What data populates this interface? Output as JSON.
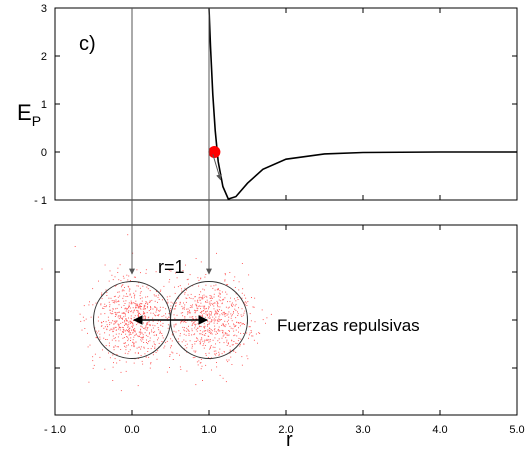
{
  "chart_data": [
    {
      "type": "line",
      "panel_label": "c)",
      "ylabel_main": "E",
      "ylabel_sub": "P",
      "xlim": [
        -1.0,
        5.0
      ],
      "ylim": [
        -1,
        3
      ],
      "yticks": [
        3,
        2,
        1,
        0,
        -1
      ],
      "ytick_labels": [
        "3",
        "2",
        "1",
        "0",
        "- 1"
      ],
      "series": [
        {
          "color": "#000000",
          "description_points_x": [
            1.0,
            1.02,
            1.05,
            1.08,
            1.12,
            1.18,
            1.25,
            1.35,
            1.5,
            1.7,
            2.0,
            2.5,
            3.0,
            4.0,
            5.0
          ],
          "description_points_y": [
            3.0,
            2.2,
            1.2,
            0.45,
            -0.2,
            -0.72,
            -0.98,
            -0.93,
            -0.65,
            -0.36,
            -0.15,
            -0.04,
            -0.01,
            0.0,
            0.0
          ]
        }
      ],
      "marker": {
        "x": 1.07,
        "y": 0.0,
        "color": "#ff0000"
      },
      "force_arrow": {
        "from": [
          1.05,
          -0.05
        ],
        "to": [
          1.15,
          -0.58
        ]
      }
    },
    {
      "type": "scatter",
      "annotation_distance": "r=1",
      "annotation_force": "Fuerzas repulsivas",
      "xlim": [
        -1.0,
        5.0
      ],
      "xticks": [
        -1.0,
        0.0,
        1.0,
        2.0,
        3.0,
        4.0,
        5.0
      ],
      "xtick_labels": [
        "- 1.0",
        "0.0",
        "1.0",
        "2.0",
        "3.0",
        "4.0",
        "5.0"
      ],
      "xlabel": "r",
      "atoms": [
        {
          "center_x": 0.0,
          "radius": 0.5
        },
        {
          "center_x": 1.0,
          "radius": 0.5
        }
      ],
      "cloud_color": "#ff6060",
      "distance_arrow": {
        "from": 0.0,
        "to": 1.0
      },
      "guide_lines_x": [
        0.0,
        1.0
      ]
    }
  ]
}
